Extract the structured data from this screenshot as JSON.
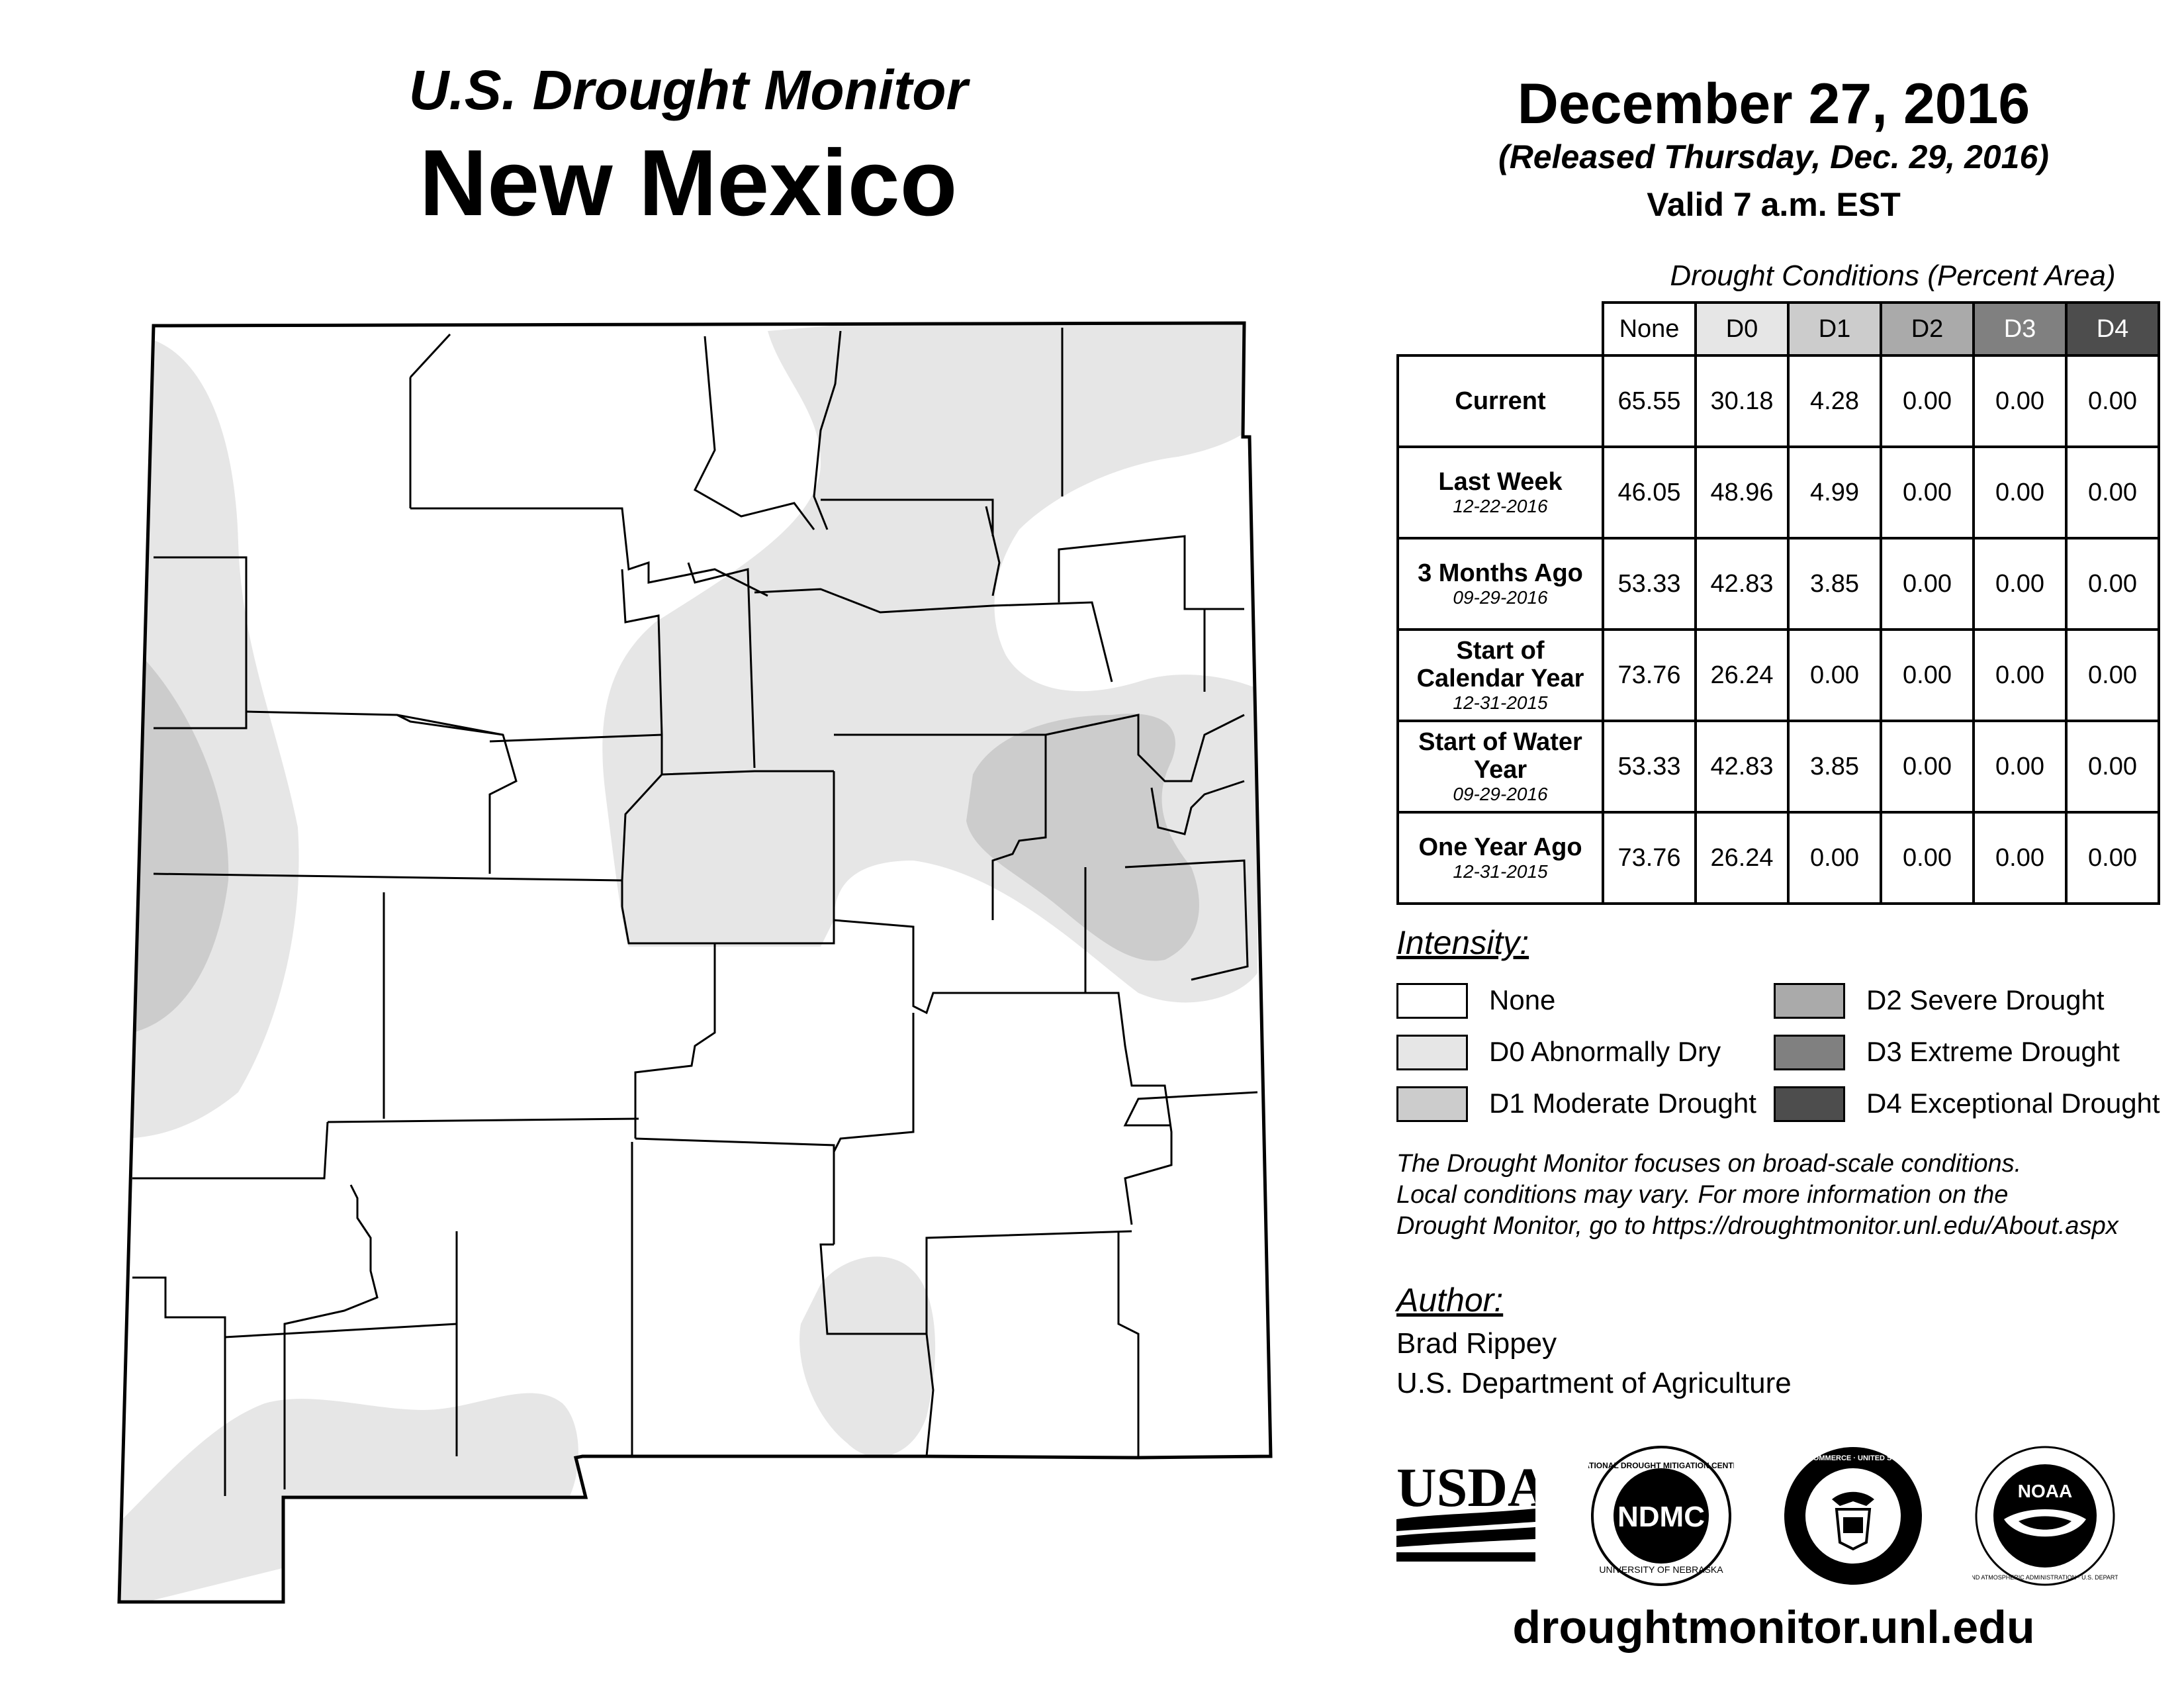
{
  "header": {
    "subtitle": "U.S. Drought Monitor",
    "state": "New Mexico",
    "date": "December 27, 2016",
    "released": "(Released Thursday, Dec. 29, 2016)",
    "valid": "Valid 7 a.m. EST"
  },
  "conditions": {
    "caption": "Drought Conditions (Percent Area)",
    "columns": [
      "None",
      "D0",
      "D1",
      "D2",
      "D3",
      "D4"
    ],
    "column_colors": [
      "#ffffff",
      "#e6e6e6",
      "#cccccc",
      "#aaaaaa",
      "#808080",
      "#4d4d4d"
    ],
    "rows": [
      {
        "label": "Current",
        "date": "",
        "values": [
          "65.55",
          "30.18",
          "4.28",
          "0.00",
          "0.00",
          "0.00"
        ]
      },
      {
        "label": "Last Week",
        "date": "12-22-2016",
        "values": [
          "46.05",
          "48.96",
          "4.99",
          "0.00",
          "0.00",
          "0.00"
        ]
      },
      {
        "label": "3 Months Ago",
        "date": "09-29-2016",
        "values": [
          "53.33",
          "42.83",
          "3.85",
          "0.00",
          "0.00",
          "0.00"
        ]
      },
      {
        "label": "Start of Calendar Year",
        "date": "12-31-2015",
        "values": [
          "73.76",
          "26.24",
          "0.00",
          "0.00",
          "0.00",
          "0.00"
        ]
      },
      {
        "label": "Start of Water Year",
        "date": "09-29-2016",
        "values": [
          "53.33",
          "42.83",
          "3.85",
          "0.00",
          "0.00",
          "0.00"
        ]
      },
      {
        "label": "One Year Ago",
        "date": "12-31-2015",
        "values": [
          "73.76",
          "26.24",
          "0.00",
          "0.00",
          "0.00",
          "0.00"
        ]
      }
    ]
  },
  "legend": {
    "title": "Intensity:",
    "items": [
      {
        "label": "None",
        "color": "#ffffff"
      },
      {
        "label": "D0 Abnormally Dry",
        "color": "#e6e6e6"
      },
      {
        "label": "D1 Moderate Drought",
        "color": "#cccccc"
      },
      {
        "label": "D2 Severe Drought",
        "color": "#aaaaaa"
      },
      {
        "label": "D3 Extreme Drought",
        "color": "#808080"
      },
      {
        "label": "D4 Exceptional Drought",
        "color": "#4d4d4d"
      }
    ]
  },
  "note": {
    "line1": "The Drought Monitor focuses on broad-scale conditions.",
    "line2": "Local conditions may vary. For more information on the",
    "line3": "Drought Monitor, go to https://droughtmonitor.unl.edu/About.aspx"
  },
  "author": {
    "title": "Author:",
    "name": "Brad Rippey",
    "org": "U.S. Department of Agriculture"
  },
  "logos": {
    "usda": "USDA",
    "ndmc": "NDMC",
    "ndmc_top": "NATIONAL DROUGHT MITIGATION CENTER",
    "ndmc_bottom": "UNIVERSITY OF NEBRASKA",
    "doc_ring": "DEPARTMENT OF COMMERCE · UNITED STATES OF AMERICA",
    "noaa": "NOAA",
    "noaa_ring": "NATIONAL OCEANIC AND ATMOSPHERIC ADMINISTRATION · U.S. DEPARTMENT OF COMMERCE"
  },
  "website": "droughtmonitor.unl.edu",
  "map_colors": {
    "d0": "#e6e6e6",
    "d1": "#cccccc",
    "border": "#000000"
  }
}
